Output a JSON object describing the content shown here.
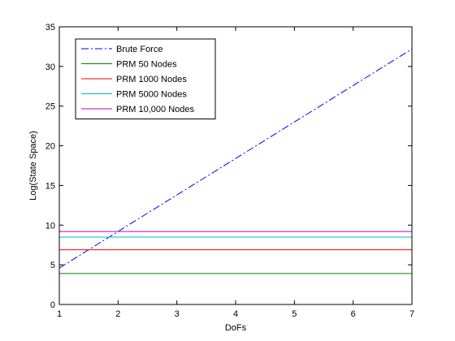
{
  "chart_data": {
    "type": "line",
    "title": "",
    "xlabel": "DoFs",
    "ylabel": "Log(State Space)",
    "xlim": [
      1,
      7
    ],
    "ylim": [
      0,
      35
    ],
    "xticks": [
      1,
      2,
      3,
      4,
      5,
      6,
      7
    ],
    "yticks": [
      0,
      5,
      10,
      15,
      20,
      25,
      30,
      35
    ],
    "grid": false,
    "legend_position": "top-left",
    "series": [
      {
        "name": "Brute Force",
        "color": "#0000ff",
        "style": "dashdot",
        "x": [
          1,
          7
        ],
        "y": [
          4.6,
          32.2
        ]
      },
      {
        "name": "PRM 50 Nodes",
        "color": "#008000",
        "style": "solid",
        "x": [
          1,
          7
        ],
        "y": [
          3.9,
          3.9
        ]
      },
      {
        "name": "PRM 1000 Nodes",
        "color": "#ff0000",
        "style": "solid",
        "x": [
          1,
          7
        ],
        "y": [
          6.9,
          6.9
        ]
      },
      {
        "name": "PRM 5000 Nodes",
        "color": "#00bfbf",
        "style": "solid",
        "x": [
          1,
          7
        ],
        "y": [
          8.5,
          8.5
        ]
      },
      {
        "name": "PRM 10,000 Nodes",
        "color": "#bf00bf",
        "style": "solid",
        "x": [
          1,
          7
        ],
        "y": [
          9.2,
          9.2
        ]
      }
    ]
  }
}
